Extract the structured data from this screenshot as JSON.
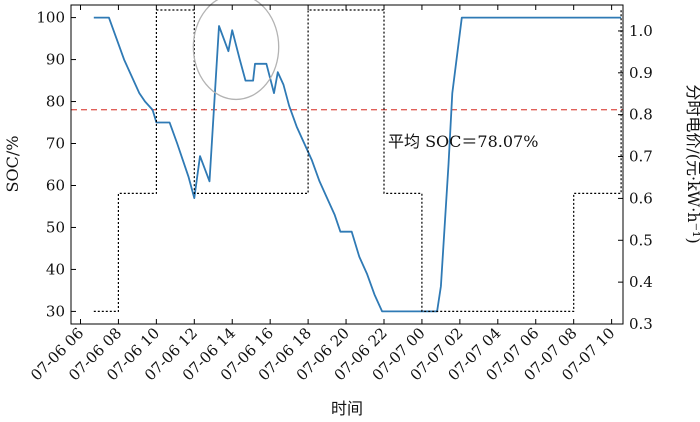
{
  "chart_data": {
    "type": "line",
    "xlabel": "时间",
    "ylabel_left": "SOC/%",
    "ylabel_right": "分时电价/(元·kW·h⁻¹)",
    "x_ticks": [
      "07-06 06",
      "07-06 08",
      "07-06 10",
      "07-06 12",
      "07-06 14",
      "07-06 16",
      "07-06 18",
      "07-06 20",
      "07-06 22",
      "07-07 00",
      "07-07 02",
      "07-07 04",
      "07-07 06",
      "07-07 08",
      "07-07 10"
    ],
    "x_range_hours": [
      5.5,
      34.6
    ],
    "y_left_ticks": [
      30,
      40,
      50,
      60,
      70,
      80,
      90,
      100
    ],
    "y_left_range": [
      27,
      103
    ],
    "y_right_ticks": [
      0.3,
      0.4,
      0.5,
      0.6,
      0.7,
      0.8,
      0.9,
      1.0
    ],
    "y_right_range": [
      0.3,
      1.062
    ],
    "average_soc": 78.07,
    "annotation": "平均 SOC＝78.07%",
    "series": [
      {
        "axis": "left",
        "color": "#2f7ab5",
        "style": "solid",
        "points": [
          [
            6.7,
            100
          ],
          [
            7.5,
            100
          ],
          [
            7.9,
            95
          ],
          [
            8.3,
            90
          ],
          [
            8.7,
            86
          ],
          [
            9.1,
            82
          ],
          [
            9.4,
            80
          ],
          [
            9.8,
            78
          ],
          [
            10.0,
            75
          ],
          [
            10.7,
            75
          ],
          [
            11.1,
            70
          ],
          [
            11.4,
            66
          ],
          [
            11.7,
            62
          ],
          [
            12.0,
            57
          ],
          [
            12.3,
            67
          ],
          [
            12.8,
            61
          ],
          [
            13.3,
            98
          ],
          [
            13.8,
            92
          ],
          [
            14.0,
            97
          ],
          [
            14.4,
            90
          ],
          [
            14.7,
            85
          ],
          [
            15.1,
            85
          ],
          [
            15.2,
            89
          ],
          [
            15.8,
            89
          ],
          [
            16.2,
            82
          ],
          [
            16.4,
            87
          ],
          [
            16.7,
            84
          ],
          [
            17.0,
            79
          ],
          [
            17.4,
            74
          ],
          [
            17.8,
            70
          ],
          [
            18.2,
            66
          ],
          [
            18.6,
            61
          ],
          [
            19.0,
            57
          ],
          [
            19.4,
            53
          ],
          [
            19.7,
            49
          ],
          [
            20.3,
            49
          ],
          [
            20.7,
            43
          ],
          [
            21.1,
            39
          ],
          [
            21.5,
            34
          ],
          [
            21.9,
            30
          ],
          [
            24.8,
            30
          ],
          [
            25.0,
            36
          ],
          [
            25.4,
            65
          ],
          [
            25.6,
            82
          ],
          [
            26.1,
            100
          ],
          [
            34.5,
            100
          ]
        ]
      },
      {
        "axis": "right",
        "color": "#000000",
        "style": "dotted",
        "points": [
          [
            6.7,
            0.33
          ],
          [
            8.0,
            0.33
          ],
          [
            8.0,
            0.612
          ],
          [
            10.0,
            0.612
          ],
          [
            10.0,
            1.05
          ],
          [
            12.0,
            1.05
          ],
          [
            12.0,
            0.612
          ],
          [
            18.0,
            0.612
          ],
          [
            18.0,
            1.05
          ],
          [
            22.0,
            1.05
          ],
          [
            22.0,
            0.612
          ],
          [
            24.0,
            0.612
          ],
          [
            24.0,
            0.33
          ],
          [
            32.0,
            0.33
          ],
          [
            32.0,
            0.612
          ],
          [
            34.5,
            0.612
          ],
          [
            34.5,
            1.05
          ]
        ]
      }
    ],
    "reference_line": {
      "axis": "left",
      "value": 78.07,
      "color": "#e0615a",
      "style": "dashed"
    },
    "highlight_circle": {
      "center_hours": 14.2,
      "center_soc": 93,
      "rx_hours": 2.25,
      "ry_soc": 12.5,
      "color": "#b3b3b3"
    }
  }
}
